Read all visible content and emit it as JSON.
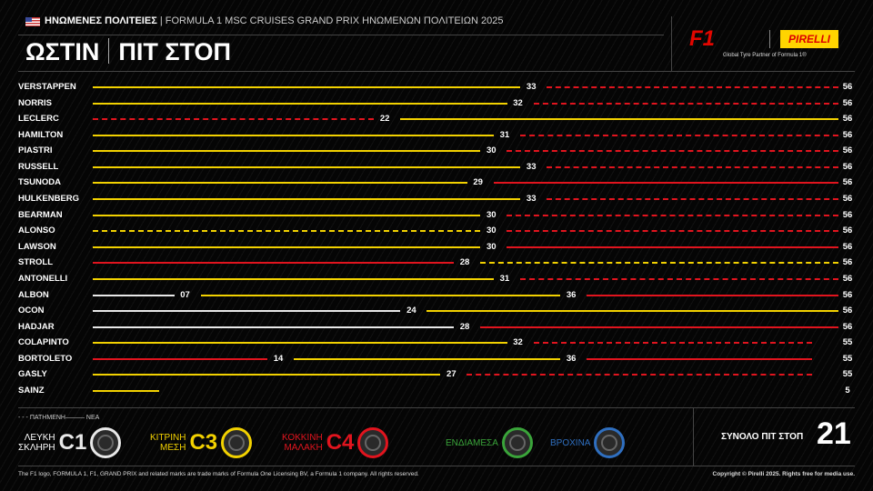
{
  "header": {
    "country": "ΗΝΩΜΕΝΕΣ ΠΟΛΙΤΕΙΕΣ",
    "event": "| FORMULA 1 MSC CRUISES GRAND PRIX ΗΝΩΜΕΝΩΝ ΠΟΛΙΤΕΙΩΝ 2025",
    "title_left": "ΩΣΤΙΝ",
    "title_right": "ΠΙΤ ΣΤΟΠ"
  },
  "logos": {
    "f1": "F1",
    "pirelli": "PIRELLI",
    "partner": "Global Tyre Partner of Formula 1®"
  },
  "colors": {
    "hard": "#e8e8e8",
    "medium": "#f2d100",
    "soft": "#e1141e",
    "inter": "#3aa43a",
    "wet": "#2f6fc0"
  },
  "total_laps_scale": 56,
  "drivers": [
    {
      "name": "VERSTAPPEN",
      "stints": [
        {
          "c": "medium",
          "used": false,
          "end": 33
        },
        {
          "c": "soft",
          "used": true,
          "end": 56
        }
      ]
    },
    {
      "name": "NORRIS",
      "stints": [
        {
          "c": "medium",
          "used": false,
          "end": 32
        },
        {
          "c": "soft",
          "used": true,
          "end": 56
        }
      ]
    },
    {
      "name": "LECLERC",
      "stints": [
        {
          "c": "soft",
          "used": true,
          "end": 22
        },
        {
          "c": "medium",
          "used": false,
          "end": 56
        }
      ]
    },
    {
      "name": "HAMILTON",
      "stints": [
        {
          "c": "medium",
          "used": false,
          "end": 31
        },
        {
          "c": "soft",
          "used": true,
          "end": 56
        }
      ]
    },
    {
      "name": "PIASTRI",
      "stints": [
        {
          "c": "medium",
          "used": false,
          "end": 30
        },
        {
          "c": "soft",
          "used": true,
          "end": 56
        }
      ]
    },
    {
      "name": "RUSSELL",
      "stints": [
        {
          "c": "medium",
          "used": false,
          "end": 33
        },
        {
          "c": "soft",
          "used": true,
          "end": 56
        }
      ]
    },
    {
      "name": "TSUNODA",
      "stints": [
        {
          "c": "medium",
          "used": false,
          "end": 29
        },
        {
          "c": "soft",
          "used": false,
          "end": 56
        }
      ]
    },
    {
      "name": "HULKENBERG",
      "stints": [
        {
          "c": "medium",
          "used": false,
          "end": 33
        },
        {
          "c": "soft",
          "used": true,
          "end": 56
        }
      ]
    },
    {
      "name": "BEARMAN",
      "stints": [
        {
          "c": "medium",
          "used": false,
          "end": 30
        },
        {
          "c": "soft",
          "used": true,
          "end": 56
        }
      ]
    },
    {
      "name": "ALONSO",
      "stints": [
        {
          "c": "medium",
          "used": true,
          "end": 30
        },
        {
          "c": "soft",
          "used": true,
          "end": 56
        }
      ]
    },
    {
      "name": "LAWSON",
      "stints": [
        {
          "c": "medium",
          "used": false,
          "end": 30
        },
        {
          "c": "soft",
          "used": false,
          "end": 56
        }
      ]
    },
    {
      "name": "STROLL",
      "stints": [
        {
          "c": "soft",
          "used": false,
          "end": 28
        },
        {
          "c": "medium",
          "used": true,
          "end": 56
        }
      ]
    },
    {
      "name": "ANTONELLI",
      "stints": [
        {
          "c": "medium",
          "used": false,
          "end": 31
        },
        {
          "c": "soft",
          "used": true,
          "end": 56
        }
      ]
    },
    {
      "name": "ALBON",
      "stints": [
        {
          "c": "hard",
          "used": false,
          "end": 7,
          "label": "07"
        },
        {
          "c": "medium",
          "used": false,
          "end": 36
        },
        {
          "c": "soft",
          "used": false,
          "end": 56
        }
      ]
    },
    {
      "name": "OCON",
      "stints": [
        {
          "c": "hard",
          "used": false,
          "end": 24
        },
        {
          "c": "medium",
          "used": false,
          "end": 56
        }
      ]
    },
    {
      "name": "HADJAR",
      "stints": [
        {
          "c": "hard",
          "used": false,
          "end": 28
        },
        {
          "c": "soft",
          "used": false,
          "end": 56
        }
      ]
    },
    {
      "name": "COLAPINTO",
      "stints": [
        {
          "c": "medium",
          "used": false,
          "end": 32
        },
        {
          "c": "soft",
          "used": true,
          "end": 55
        }
      ]
    },
    {
      "name": "BORTOLETO",
      "stints": [
        {
          "c": "soft",
          "used": false,
          "end": 14
        },
        {
          "c": "medium",
          "used": false,
          "end": 36
        },
        {
          "c": "soft",
          "used": false,
          "end": 55
        }
      ]
    },
    {
      "name": "GASLY",
      "stints": [
        {
          "c": "medium",
          "used": false,
          "end": 27
        },
        {
          "c": "soft",
          "used": true,
          "end": 55
        }
      ]
    },
    {
      "name": "SAINZ",
      "stints": [
        {
          "c": "medium",
          "used": false,
          "end": 5
        }
      ]
    }
  ],
  "legend": {
    "used": "- - - ΠΑΤΗΜΕΝΗ",
    "new": "——— ΝΕΑ",
    "tyres": [
      {
        "key": "hard",
        "name1": "ΛΕΥΚΗ",
        "name2": "ΣΚΛΗΡΗ",
        "code": "C1"
      },
      {
        "key": "medium",
        "name1": "ΚΙΤΡΙΝΗ",
        "name2": "ΜΕΣΗ",
        "code": "C3"
      },
      {
        "key": "soft",
        "name1": "ΚΟΚΚΙΝΗ",
        "name2": "ΜΑΛΑΚΗ",
        "code": "C4"
      },
      {
        "key": "inter",
        "name1": "ΕΝΔΙΑΜΕΣΑ",
        "name2": "",
        "code": ""
      },
      {
        "key": "wet",
        "name1": "ΒΡΟΧΙΝΑ",
        "name2": "",
        "code": ""
      }
    ]
  },
  "total": {
    "label": "ΣΥΝΟΛΟ ΠΙΤ ΣΤΟΠ",
    "value": "21"
  },
  "footer": {
    "left": "The F1 logo, FORMULA 1, F1, GRAND PRIX and related marks are trade marks of Formula One Licensing BV, a Formula 1 company. All rights reserved.",
    "right": "Copyright © Pirelli 2025. Rights free for media use."
  }
}
